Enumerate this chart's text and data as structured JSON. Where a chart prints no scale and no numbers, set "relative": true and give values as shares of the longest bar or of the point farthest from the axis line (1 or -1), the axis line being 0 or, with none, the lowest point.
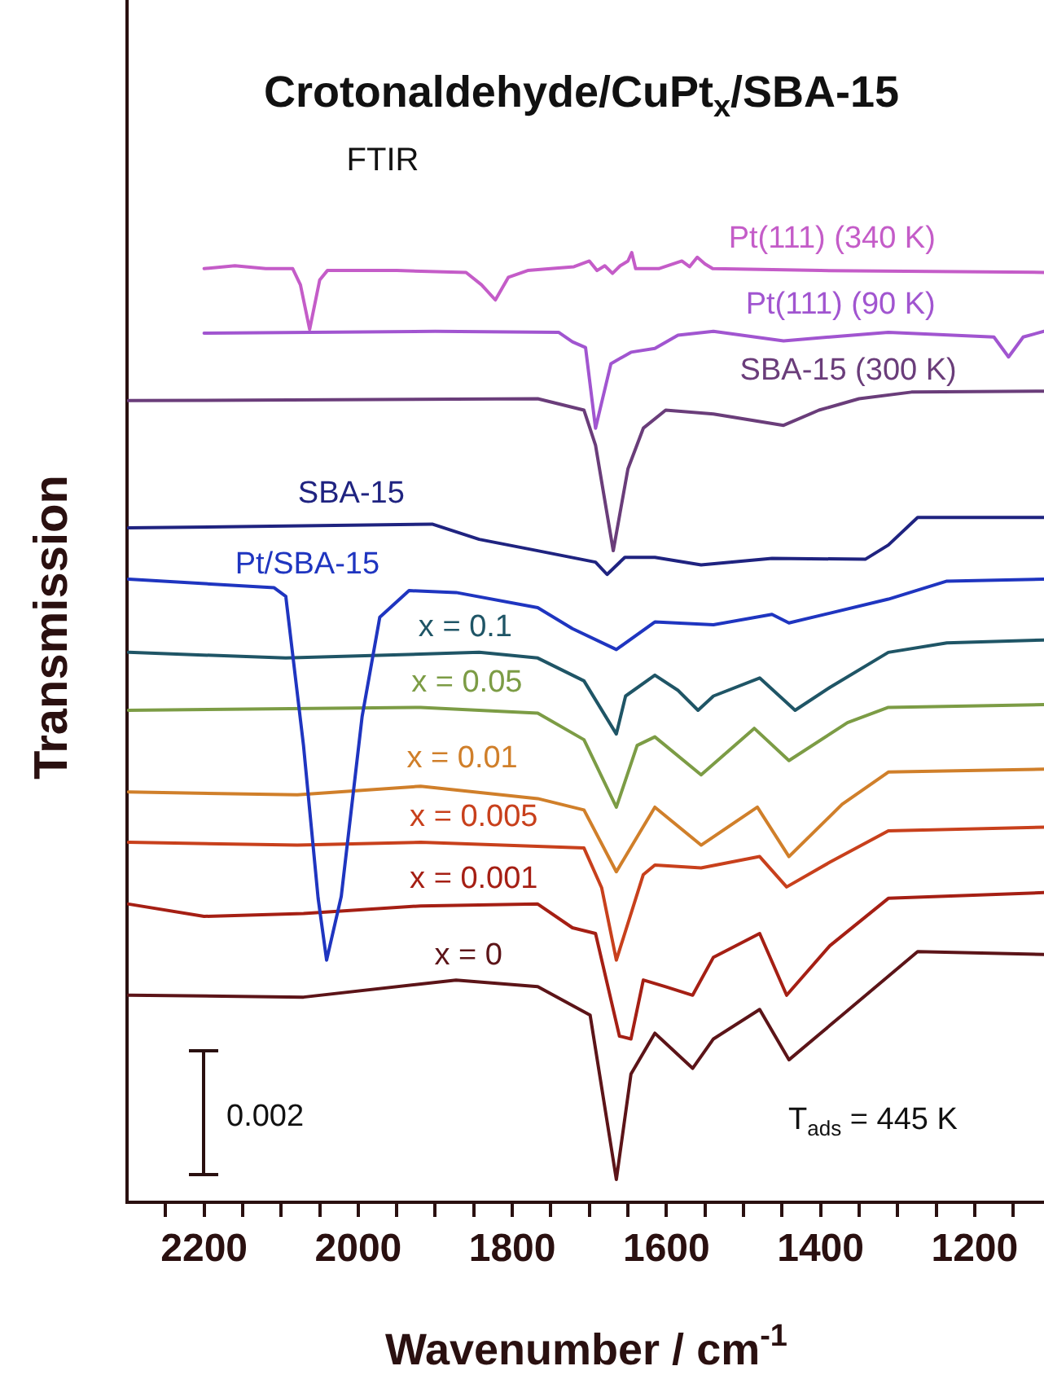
{
  "chart_data": {
    "type": "line",
    "title": "Crotonaldehyde/CuPt$_{x}$/SBA-15",
    "subtitle": "FTIR",
    "xlabel": "Wavenumber / cm$^{-1}$",
    "ylabel": "Transmission",
    "annotations": [
      "0.002",
      "T$_{ads}$ = 445 K"
    ],
    "relative": true,
    "xlim": [
      2300,
      1110
    ],
    "xticks": [
      {
        "value": 2250,
        "label": null
      },
      2200,
      {
        "value": 2150,
        "label": null
      },
      {
        "value": 2100,
        "label": null
      },
      {
        "value": 2050,
        "label": null
      },
      2000,
      {
        "value": 1950,
        "label": null
      },
      {
        "value": 1900,
        "label": null
      },
      {
        "value": 1850,
        "label": null
      },
      1800,
      {
        "value": 1750,
        "label": null
      },
      {
        "value": 1700,
        "label": null
      },
      {
        "value": 1650,
        "label": null
      },
      1600,
      {
        "value": 1550,
        "label": null
      },
      {
        "value": 1500,
        "label": null
      },
      {
        "value": 1450,
        "label": null
      },
      1400,
      {
        "value": 1350,
        "label": null
      },
      {
        "value": 1300,
        "label": null
      },
      {
        "value": 1250,
        "label": null
      },
      1200,
      {
        "value": 1150,
        "label": null
      }
    ],
    "marker": "none",
    "line_style": "solid",
    "series": [
      {
        "name": "Pt(111) (340 K)",
        "color": "#c45cc8",
        "x": [
          2200,
          2160,
          2120,
          2085,
          2075,
          2063,
          2050,
          2040,
          1950,
          1860,
          1840,
          1822,
          1805,
          1780,
          1720,
          1700,
          1690,
          1680,
          1670,
          1660,
          1650,
          1645,
          1640,
          1610,
          1580,
          1570,
          1560,
          1550,
          1540,
          1400,
          1110
        ],
        "values": [
          0.983,
          0.986,
          0.983,
          0.983,
          0.966,
          0.919,
          0.971,
          0.981,
          0.981,
          0.979,
          0.966,
          0.95,
          0.974,
          0.981,
          0.985,
          0.991,
          0.981,
          0.986,
          0.978,
          0.986,
          0.991,
          1.0,
          0.983,
          0.983,
          0.991,
          0.985,
          0.995,
          0.988,
          0.983,
          0.981,
          0.979
        ]
      },
      {
        "name": "Pt(111) (90 K)",
        "color": "#a155d0",
        "x": [
          2200,
          1900,
          1740,
          1722,
          1705,
          1692,
          1672,
          1646,
          1615,
          1585,
          1539,
          1448,
          1388,
          1312,
          1175,
          1156,
          1137,
          1110
        ],
        "values": [
          0.915,
          0.917,
          0.916,
          0.906,
          0.9,
          0.815,
          0.883,
          0.895,
          0.899,
          0.913,
          0.917,
          0.907,
          0.911,
          0.916,
          0.911,
          0.89,
          0.911,
          0.917
        ]
      },
      {
        "name": "SBA-15 (300 K)",
        "color": "#6a3d7a",
        "x": [
          2298,
          1767,
          1707,
          1692,
          1669,
          1650,
          1630,
          1601,
          1539,
          1448,
          1402,
          1350,
          1282,
          1110
        ],
        "values": [
          0.844,
          0.846,
          0.834,
          0.797,
          0.686,
          0.772,
          0.815,
          0.834,
          0.83,
          0.818,
          0.834,
          0.846,
          0.853,
          0.854
        ]
      },
      {
        "name": "SBA-15",
        "color": "#1f2380",
        "x": [
          2298,
          1904,
          1843,
          1767,
          1692,
          1677,
          1654,
          1615,
          1555,
          1463,
          1342,
          1312,
          1274,
          1110
        ],
        "values": [
          0.71,
          0.714,
          0.698,
          0.686,
          0.674,
          0.661,
          0.679,
          0.679,
          0.671,
          0.678,
          0.677,
          0.692,
          0.721,
          0.721
        ]
      },
      {
        "name": "Pt/SBA-15",
        "color": "#1f35c0",
        "x": [
          2298,
          2109,
          2094,
          2071,
          2052,
          2041,
          2022,
          1995,
          1972,
          1934,
          1873,
          1767,
          1722,
          1665,
          1615,
          1539,
          1463,
          1441,
          1312,
          1236,
          1110
        ],
        "values": [
          0.656,
          0.647,
          0.638,
          0.481,
          0.32,
          0.255,
          0.322,
          0.511,
          0.616,
          0.644,
          0.642,
          0.626,
          0.604,
          0.582,
          0.611,
          0.608,
          0.619,
          0.61,
          0.635,
          0.654,
          0.656
        ]
      },
      {
        "name": "x = 0.1",
        "color": "#1f5566",
        "x": [
          2298,
          2094,
          1843,
          1767,
          1707,
          1665,
          1653,
          1615,
          1585,
          1559,
          1539,
          1479,
          1433,
          1388,
          1312,
          1236,
          1110
        ],
        "values": [
          0.579,
          0.573,
          0.579,
          0.573,
          0.549,
          0.493,
          0.533,
          0.555,
          0.539,
          0.518,
          0.533,
          0.552,
          0.518,
          0.542,
          0.579,
          0.589,
          0.592
        ]
      },
      {
        "name": "x = 0.05",
        "color": "#7c9c45",
        "x": [
          2298,
          1919,
          1767,
          1707,
          1665,
          1638,
          1615,
          1555,
          1486,
          1441,
          1365,
          1312,
          1110
        ],
        "values": [
          0.518,
          0.521,
          0.515,
          0.487,
          0.416,
          0.481,
          0.49,
          0.45,
          0.499,
          0.465,
          0.505,
          0.521,
          0.524
        ]
      },
      {
        "name": "x = 0.01",
        "color": "#d07f2a",
        "x": [
          2298,
          2079,
          1919,
          1767,
          1707,
          1665,
          1615,
          1555,
          1482,
          1441,
          1372,
          1312,
          1110
        ],
        "values": [
          0.432,
          0.429,
          0.438,
          0.425,
          0.413,
          0.348,
          0.416,
          0.376,
          0.416,
          0.364,
          0.419,
          0.453,
          0.456
        ]
      },
      {
        "name": "x = 0.005",
        "color": "#c8401c",
        "x": [
          2298,
          2079,
          1919,
          1707,
          1684,
          1665,
          1630,
          1615,
          1555,
          1479,
          1444,
          1388,
          1312,
          1110
        ],
        "values": [
          0.379,
          0.376,
          0.379,
          0.373,
          0.331,
          0.255,
          0.345,
          0.355,
          0.352,
          0.364,
          0.332,
          0.358,
          0.391,
          0.395
        ]
      },
      {
        "name": "x = 0.001",
        "color": "#a51f14",
        "x": [
          2298,
          2200,
          2071,
          1919,
          1767,
          1722,
          1692,
          1661,
          1646,
          1630,
          1601,
          1566,
          1539,
          1479,
          1444,
          1388,
          1312,
          1110
        ],
        "values": [
          0.314,
          0.301,
          0.304,
          0.312,
          0.314,
          0.289,
          0.283,
          0.175,
          0.172,
          0.234,
          0.227,
          0.218,
          0.258,
          0.283,
          0.218,
          0.27,
          0.32,
          0.326
        ]
      },
      {
        "name": "x = 0",
        "color": "#5c1418",
        "x": [
          2298,
          2071,
          1873,
          1767,
          1699,
          1665,
          1646,
          1615,
          1566,
          1539,
          1479,
          1441,
          1372,
          1274,
          1110
        ],
        "values": [
          0.218,
          0.216,
          0.234,
          0.227,
          0.197,
          0.024,
          0.135,
          0.178,
          0.141,
          0.172,
          0.203,
          0.15,
          0.197,
          0.264,
          0.261
        ]
      }
    ]
  }
}
